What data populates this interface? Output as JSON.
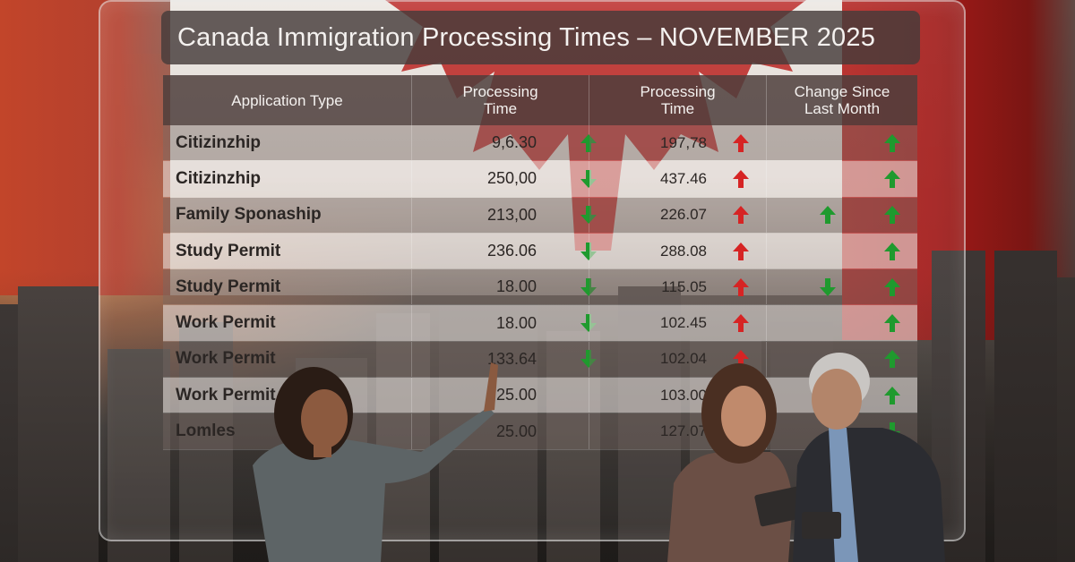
{
  "title": "Canada Immigration Processing Times – NOVEMBER 2025",
  "colors": {
    "flag_red": "#b21f1c",
    "arrow_up_red": "#d62424",
    "arrow_up_green": "#1f9a2e",
    "arrow_down_green": "#1f9a2e"
  },
  "table": {
    "headers": [
      "Application Type",
      "Processing Time",
      "Processing Time",
      "Change Since Last Month"
    ],
    "rows": [
      {
        "type": "Citizinzhip",
        "time1": "9,6.30",
        "arrow1": "up-green",
        "time2": "197,78",
        "arrow2": "up-red",
        "change": [
          "",
          "up-green"
        ]
      },
      {
        "type": "Citizinzhip",
        "time1": "250,00",
        "arrow1": "down-green",
        "time2": "437.46",
        "arrow2": "up-red",
        "change": [
          "",
          "up-green"
        ]
      },
      {
        "type": "Family Sponaship",
        "time1": "213,00",
        "arrow1": "down-green",
        "time2": "226.07",
        "arrow2": "up-red",
        "change": [
          "up-green",
          "up-green"
        ]
      },
      {
        "type": "Study Permit",
        "time1": "236.06",
        "arrow1": "down-green",
        "time2": "288.08",
        "arrow2": "up-red",
        "change": [
          "",
          "up-green"
        ]
      },
      {
        "type": "Study Permit",
        "time1": "18.00",
        "arrow1": "down-green",
        "time2": "115.05",
        "arrow2": "up-red",
        "change": [
          "down-green",
          "up-green"
        ]
      },
      {
        "type": "Work Permit",
        "time1": "18.00",
        "arrow1": "down-green",
        "time2": "102.45",
        "arrow2": "up-red",
        "change": [
          "",
          "up-green"
        ]
      },
      {
        "type": "Work Permit",
        "time1": "133.64",
        "arrow1": "down-green",
        "time2": "102.04",
        "arrow2": "up-red",
        "change": [
          "",
          "up-green"
        ]
      },
      {
        "type": "Work Permit",
        "time1": "25.00",
        "arrow1": "",
        "time2": "103.00",
        "arrow2": "",
        "change": [
          "",
          "up-green"
        ]
      },
      {
        "type": "Lomles",
        "time1": "25.00",
        "arrow1": "",
        "time2": "127.07",
        "arrow2": "",
        "change": [
          "",
          "down-green"
        ]
      }
    ]
  },
  "icons": {
    "up": "arrow-up-icon",
    "down": "arrow-down-icon"
  }
}
